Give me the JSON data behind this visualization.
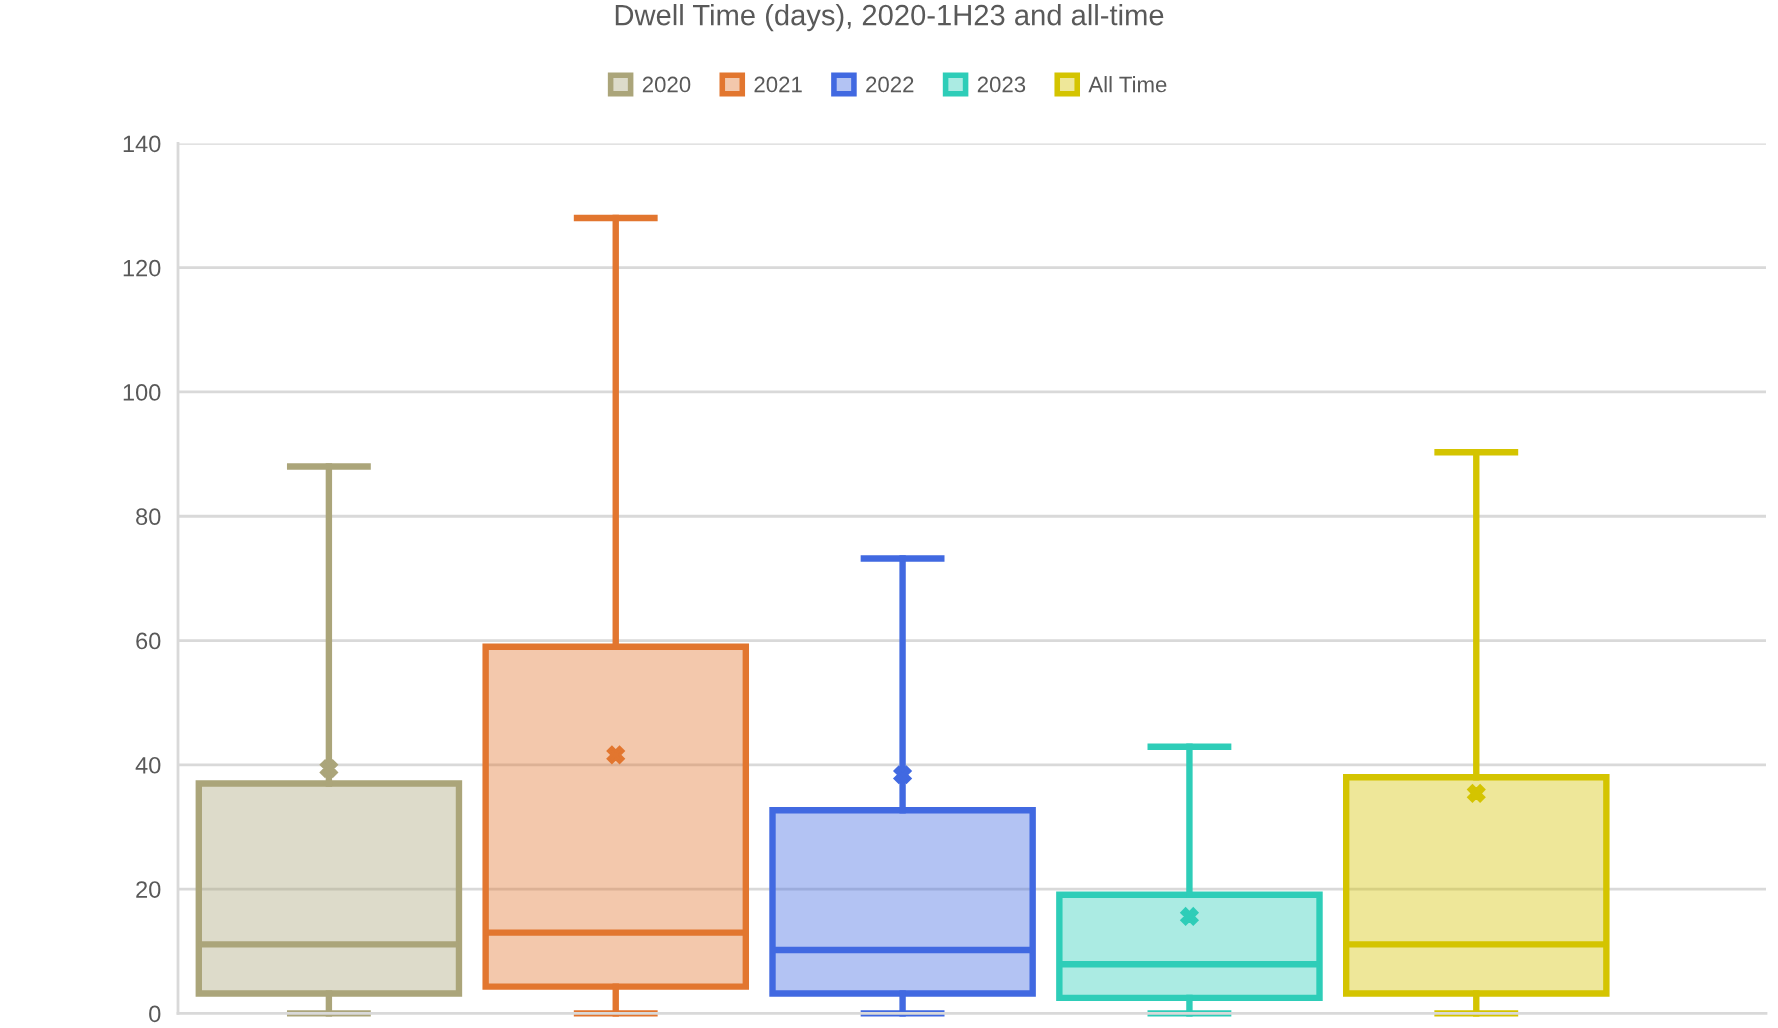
{
  "chart_data": {
    "type": "box",
    "title": "Dwell Time (days), 2020-1H23 and all-time",
    "categories": [
      null
    ],
    "series": [
      {
        "name": "2020",
        "color": "#aba57a",
        "boxes": [
          {
            "low": 0,
            "q1": 3.2,
            "median": 11.1,
            "q3": 37,
            "high": 88,
            "mean": 39.4
          }
        ]
      },
      {
        "name": "2021",
        "color": "#e2762f",
        "boxes": [
          {
            "low": 0,
            "q1": 4.3,
            "median": 13,
            "q3": 59,
            "high": 128,
            "mean": 41.6
          }
        ]
      },
      {
        "name": "2022",
        "color": "#4169e1",
        "boxes": [
          {
            "low": 0,
            "q1": 3.2,
            "median": 10.2,
            "q3": 32.7,
            "high": 73.2,
            "mean": 38.4
          }
        ]
      },
      {
        "name": "2023",
        "color": "#2ecdb8",
        "boxes": [
          {
            "low": 0,
            "q1": 2.5,
            "median": 7.9,
            "q3": 19.1,
            "high": 42.9,
            "mean": 15.6
          }
        ]
      },
      {
        "name": "All Time",
        "color": "#d4c400",
        "boxes": [
          {
            "low": 0,
            "q1": 3.2,
            "median": 11.1,
            "q3": 38,
            "high": 90.3,
            "mean": 35.4
          }
        ]
      }
    ],
    "ylim": [
      0,
      140
    ],
    "yticks": [
      0,
      20,
      40,
      60,
      80,
      100,
      120,
      140
    ],
    "grid": "y",
    "legend": "top",
    "tick_labels": "y",
    "marker": "cross"
  }
}
